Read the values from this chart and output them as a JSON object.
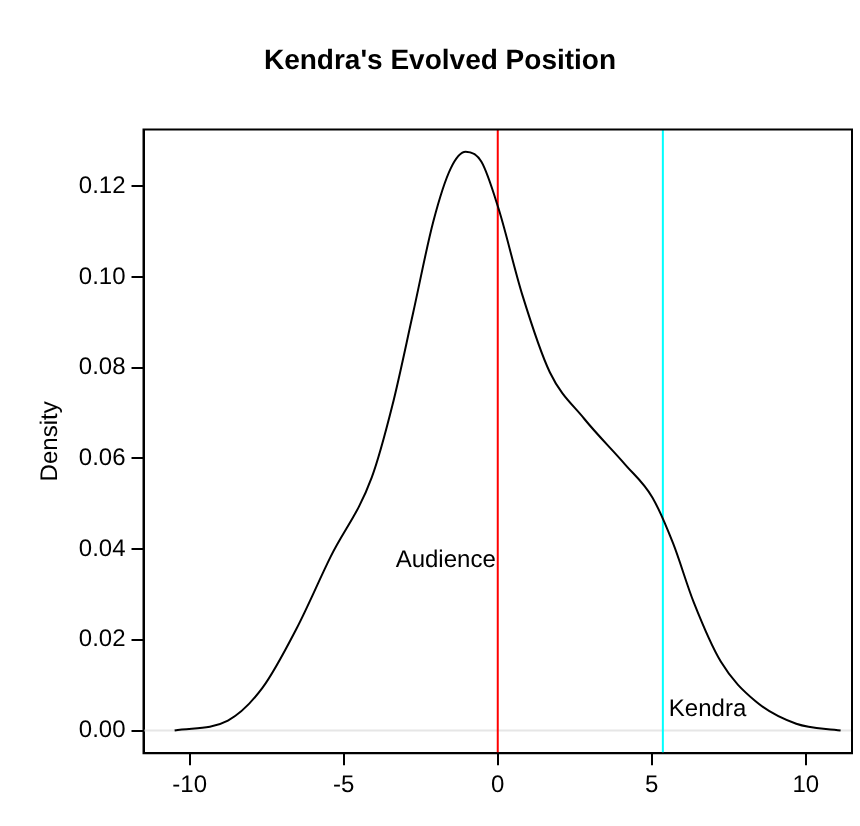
{
  "chart_data": {
    "type": "line",
    "title": "Kendra's Evolved Position",
    "ylabel": "Density",
    "x": [
      -10.49,
      -8.76,
      -7.64,
      -6.53,
      -5.42,
      -4.09,
      -3.42,
      -2.75,
      -2.09,
      -1.53,
      -1.04,
      -0.53,
      0.02,
      0.8,
      1.69,
      2.8,
      4.13,
      5.02,
      5.69,
      6.36,
      7.24,
      8.36,
      9.69,
      11.13
    ],
    "series": [
      {
        "color": "#000000",
        "values": [
          0,
          0.0022,
          0.0094,
          0.0225,
          0.0384,
          0.0558,
          0.0717,
          0.092,
          0.1123,
          0.1239,
          0.1276,
          0.1254,
          0.1152,
          0.096,
          0.079,
          0.0688,
          0.0587,
          0.0514,
          0.0413,
          0.0283,
          0.0152,
          0.0065,
          0.0015,
          0
        ]
      }
    ],
    "xlim": [
      -11.5,
      11.5
    ],
    "xticks": [
      -10,
      -5,
      0,
      5,
      10
    ],
    "ylim": [
      -0.005,
      0.1325
    ],
    "yticks": [
      {
        "value": 0,
        "label": "0.00"
      },
      {
        "value": 0.02,
        "label": "0.02"
      },
      {
        "value": 0.04,
        "label": "0.04"
      },
      {
        "value": 0.06,
        "label": "0.06"
      },
      {
        "value": 0.08,
        "label": "0.08"
      },
      {
        "value": 0.1,
        "label": "0.10"
      },
      {
        "value": 0.12,
        "label": "0.12"
      }
    ],
    "ref_lines": [
      {
        "axis": "y",
        "value": 0,
        "color": "#e6e6e6"
      },
      {
        "axis": "x",
        "value": 0,
        "color": "#ff0000",
        "label": "Audience"
      },
      {
        "axis": "x",
        "value": 5.36,
        "color": "#00ffff",
        "label": "Kendra"
      }
    ],
    "grid": false,
    "legend": false,
    "marker": "none",
    "line_style": "solid"
  }
}
